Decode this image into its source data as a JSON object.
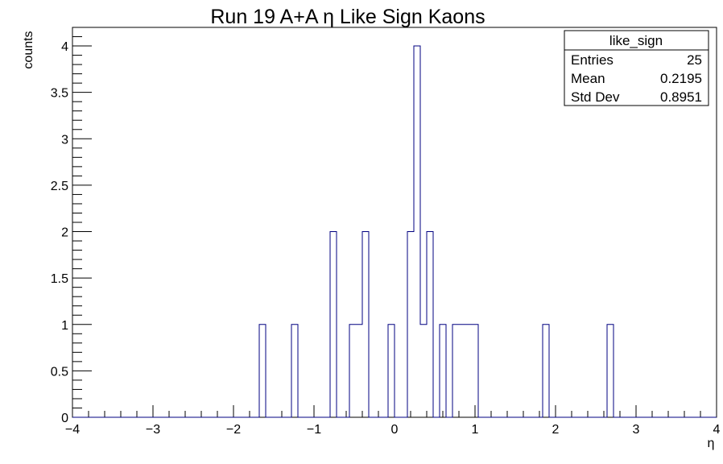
{
  "chart_data": {
    "type": "bar",
    "title": "Run 19 A+A η Like Sign Kaons",
    "xlabel": "η",
    "ylabel": "counts",
    "xlim": [
      -4,
      4
    ],
    "ylim": [
      0,
      4.2
    ],
    "bin_width": 0.08,
    "bins": [
      {
        "x0": -1.68,
        "x1": -1.6,
        "value": 1
      },
      {
        "x0": -1.28,
        "x1": -1.2,
        "value": 1
      },
      {
        "x0": -0.8,
        "x1": -0.72,
        "value": 2
      },
      {
        "x0": -0.56,
        "x1": -0.4,
        "value": 1
      },
      {
        "x0": -0.4,
        "x1": -0.32,
        "value": 2
      },
      {
        "x0": -0.08,
        "x1": 0.0,
        "value": 1
      },
      {
        "x0": 0.16,
        "x1": 0.24,
        "value": 2
      },
      {
        "x0": 0.24,
        "x1": 0.32,
        "value": 4
      },
      {
        "x0": 0.32,
        "x1": 0.4,
        "value": 1
      },
      {
        "x0": 0.4,
        "x1": 0.48,
        "value": 2
      },
      {
        "x0": 0.56,
        "x1": 0.64,
        "value": 1
      },
      {
        "x0": 0.72,
        "x1": 1.04,
        "value": 1
      },
      {
        "x0": 1.84,
        "x1": 1.92,
        "value": 1
      },
      {
        "x0": 2.64,
        "x1": 2.72,
        "value": 1
      }
    ],
    "x_ticks": [
      -4,
      -3,
      -2,
      -1,
      0,
      1,
      2,
      3,
      4
    ],
    "x_tick_labels": [
      "−4",
      "−3",
      "−2",
      "−1",
      "0",
      "1",
      "2",
      "3",
      "4"
    ],
    "y_ticks": [
      0,
      0.5,
      1,
      1.5,
      2,
      2.5,
      3,
      3.5,
      4
    ],
    "y_tick_labels": [
      "0",
      "0.5",
      "1",
      "1.5",
      "2",
      "2.5",
      "3",
      "3.5",
      "4"
    ],
    "line_color": "#000080",
    "grid": false,
    "stats_box": {
      "name": "like_sign",
      "placement": "top-right",
      "rows": [
        {
          "label": "Entries",
          "value": "25"
        },
        {
          "label": "Mean",
          "value": "0.2195"
        },
        {
          "label": "Std Dev",
          "value": "0.8951"
        }
      ]
    }
  }
}
